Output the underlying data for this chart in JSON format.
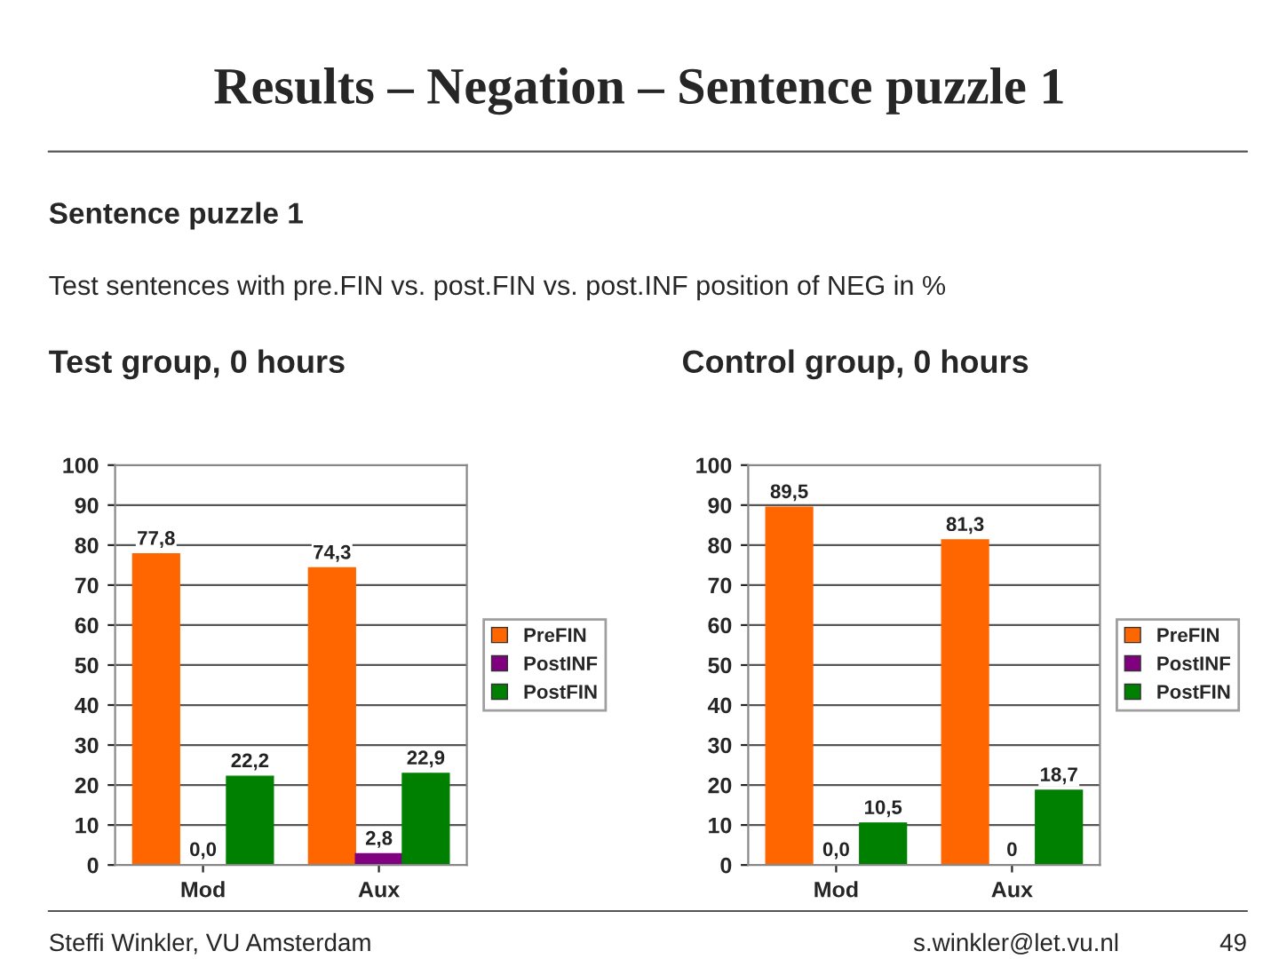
{
  "chart_data": [
    {
      "type": "bar",
      "title": "Test group, 0 hours",
      "categories": [
        "Mod",
        "Aux"
      ],
      "series": [
        {
          "name": "PreFIN",
          "color": "#ff6600",
          "values": [
            77.8,
            74.3
          ],
          "value_labels": [
            "77,8",
            "74,3"
          ]
        },
        {
          "name": "PostINF",
          "color": "#800080",
          "values": [
            0.0,
            2.8
          ],
          "value_labels": [
            "0,0",
            "2,8"
          ]
        },
        {
          "name": "PostFIN",
          "color": "#008000",
          "values": [
            22.2,
            22.9
          ],
          "value_labels": [
            "22,2",
            "22,9"
          ]
        }
      ],
      "ylim": [
        0,
        100
      ],
      "yticks": [
        0,
        10,
        20,
        30,
        40,
        50,
        60,
        70,
        80,
        90,
        100
      ],
      "grid": "y",
      "legend": "right",
      "annotations": [
        "Results – Negation – Sentence puzzle 1",
        "Sentence puzzle 1",
        "Test sentences with pre.FIN vs. post.FIN vs. post.INF position of NEG in %"
      ]
    },
    {
      "type": "bar",
      "title": "Control group, 0 hours",
      "categories": [
        "Mod",
        "Aux"
      ],
      "series": [
        {
          "name": "PreFIN",
          "color": "#ff6600",
          "values": [
            89.5,
            81.3
          ],
          "value_labels": [
            "89,5",
            "81,3"
          ]
        },
        {
          "name": "PostINF",
          "color": "#800080",
          "values": [
            0.0,
            0
          ],
          "value_labels": [
            "0,0",
            "0"
          ]
        },
        {
          "name": "PostFIN",
          "color": "#008000",
          "values": [
            10.5,
            18.7
          ],
          "value_labels": [
            "10,5",
            "18,7"
          ]
        }
      ],
      "ylim": [
        0,
        100
      ],
      "yticks": [
        0,
        10,
        20,
        30,
        40,
        50,
        60,
        70,
        80,
        90,
        100
      ],
      "grid": "y",
      "legend": "right",
      "annotations": [
        "Steffi Winkler, VU Amsterdam",
        "s.winkler@let.vu.nl",
        "49"
      ]
    }
  ]
}
